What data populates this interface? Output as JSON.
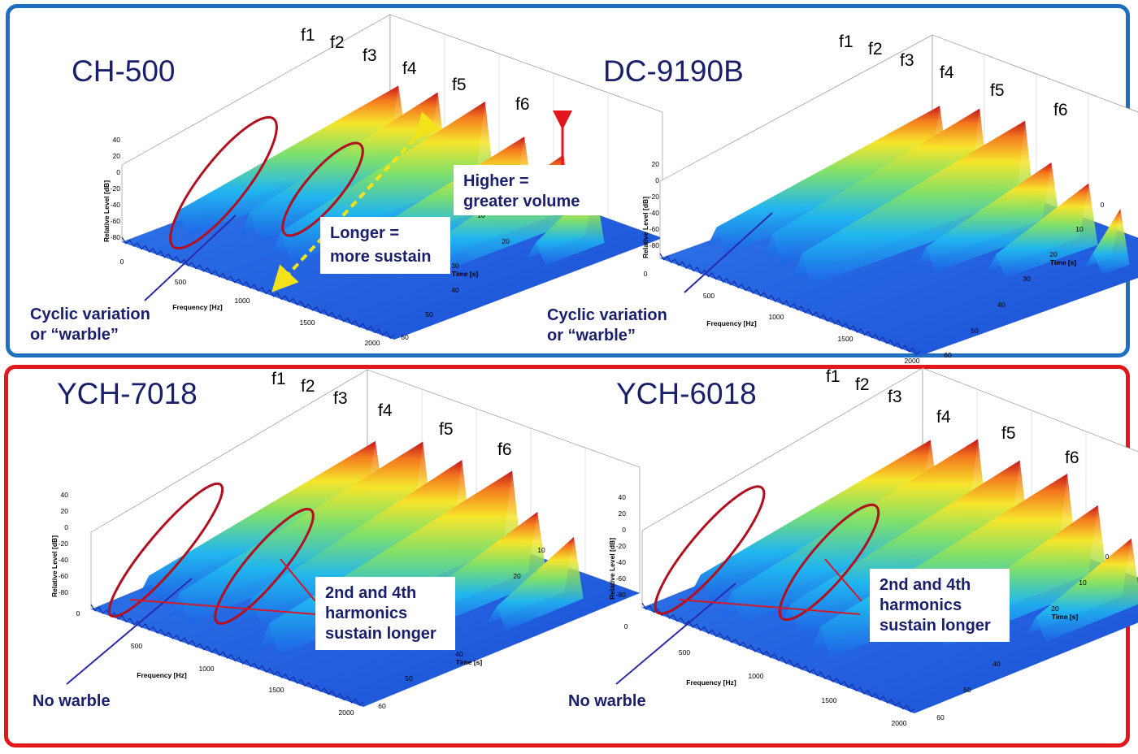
{
  "colors": {
    "top_border": "#1f6fc1",
    "bottom_border": "#e3161b",
    "title": "#1a1f6b",
    "annotation_ellipse": "#b01020",
    "arrow_red": "#e3161b",
    "arrow_yellow": "#f2e21a",
    "warble_line": "#2a2aa8"
  },
  "chart_data": [
    {
      "type": "surface",
      "title": "CH-500",
      "xlabel": "Frequency [Hz]",
      "ylabel": "Time [s]",
      "zlabel": "Relative Level [dB]",
      "x_ticks": [
        "0",
        "500",
        "1000",
        "1500",
        "2000"
      ],
      "y_ticks": [
        "10",
        "20",
        "30",
        "40",
        "50",
        "60"
      ],
      "z_ticks": [
        "40",
        "20",
        "0",
        "-20",
        "-40",
        "-60",
        "-80"
      ],
      "xlim": [
        0,
        2000
      ],
      "ylim": [
        0,
        60
      ],
      "zlim": [
        -80,
        40
      ],
      "peaks": [
        {
          "label": "f1",
          "sustain": 0.85,
          "height": 0.55
        },
        {
          "label": "f2",
          "sustain": 0.75,
          "height": 0.75
        },
        {
          "label": "f3",
          "sustain": 0.8,
          "height": 0.85
        },
        {
          "label": "f4",
          "sustain": 0.7,
          "height": 0.55
        },
        {
          "label": "f5",
          "sustain": 0.6,
          "height": 0.55
        },
        {
          "label": "f6",
          "sustain": 0.35,
          "height": 0.4
        }
      ]
    },
    {
      "type": "surface",
      "title": "DC-9190B",
      "xlabel": "Frequency [Hz]",
      "ylabel": "Time [s]",
      "zlabel": "Relative Level [dB]",
      "x_ticks": [
        "0",
        "500",
        "1000",
        "1500",
        "2000"
      ],
      "y_ticks": [
        "0",
        "10",
        "20",
        "30",
        "40",
        "50",
        "60"
      ],
      "z_ticks": [
        "20",
        "0",
        "-20",
        "-40",
        "-60",
        "-80"
      ],
      "xlim": [
        0,
        2000
      ],
      "ylim": [
        0,
        60
      ],
      "zlim": [
        -80,
        20
      ],
      "peaks": [
        {
          "label": "f1",
          "sustain": 0.85,
          "height": 0.55
        },
        {
          "label": "f2",
          "sustain": 0.8,
          "height": 0.8
        },
        {
          "label": "f3",
          "sustain": 0.85,
          "height": 0.85
        },
        {
          "label": "f4",
          "sustain": 0.55,
          "height": 0.5
        },
        {
          "label": "f5",
          "sustain": 0.45,
          "height": 0.45
        },
        {
          "label": "f6",
          "sustain": 0.25,
          "height": 0.35
        }
      ]
    },
    {
      "type": "surface",
      "title": "YCH-7018",
      "xlabel": "Frequency [Hz]",
      "ylabel": "Time [s]",
      "zlabel": "Relative Level [dB]",
      "x_ticks": [
        "0",
        "500",
        "1000",
        "1500",
        "2000"
      ],
      "y_ticks": [
        "10",
        "20",
        "40",
        "50",
        "60"
      ],
      "z_ticks": [
        "40",
        "20",
        "0",
        "-20",
        "-40",
        "-60",
        "-80"
      ],
      "xlim": [
        0,
        2000
      ],
      "ylim": [
        0,
        60
      ],
      "zlim": [
        -80,
        40
      ],
      "peaks": [
        {
          "label": "f1",
          "sustain": 0.85,
          "height": 0.55
        },
        {
          "label": "f2",
          "sustain": 0.9,
          "height": 0.8
        },
        {
          "label": "f3",
          "sustain": 0.8,
          "height": 0.8
        },
        {
          "label": "f4",
          "sustain": 0.9,
          "height": 0.85
        },
        {
          "label": "f5",
          "sustain": 0.55,
          "height": 0.55
        },
        {
          "label": "f6",
          "sustain": 0.4,
          "height": 0.45
        }
      ]
    },
    {
      "type": "surface",
      "title": "YCH-6018",
      "xlabel": "Frequency [Hz]",
      "ylabel": "Time [s]",
      "zlabel": "Relative Level [dB]",
      "x_ticks": [
        "0",
        "500",
        "1000",
        "1500",
        "2000"
      ],
      "y_ticks": [
        "0",
        "10",
        "20",
        "40",
        "50",
        "60"
      ],
      "z_ticks": [
        "40",
        "20",
        "0",
        "-20",
        "-40",
        "-60",
        "-80"
      ],
      "xlim": [
        0,
        2000
      ],
      "ylim": [
        0,
        60
      ],
      "zlim": [
        -80,
        40
      ],
      "peaks": [
        {
          "label": "f1",
          "sustain": 0.85,
          "height": 0.55
        },
        {
          "label": "f2",
          "sustain": 0.9,
          "height": 0.85
        },
        {
          "label": "f3",
          "sustain": 0.85,
          "height": 0.8
        },
        {
          "label": "f4",
          "sustain": 0.9,
          "height": 0.85
        },
        {
          "label": "f5",
          "sustain": 0.65,
          "height": 0.7
        },
        {
          "label": "f6",
          "sustain": 0.45,
          "height": 0.5
        }
      ]
    }
  ],
  "annotations": {
    "higher": [
      "Higher =",
      "greater volume"
    ],
    "longer": [
      "Longer =",
      "more sustain"
    ],
    "warble_1": [
      "Cyclic variation",
      "or “warble”"
    ],
    "warble_2": [
      "Cyclic variation",
      "or “warble”"
    ],
    "harmonics_1": [
      "2nd and 4th",
      "harmonics",
      "sustain longer"
    ],
    "harmonics_2": [
      "2nd and 4th",
      "harmonics",
      "sustain longer"
    ],
    "no_warble_1": "No warble",
    "no_warble_2": "No warble"
  }
}
